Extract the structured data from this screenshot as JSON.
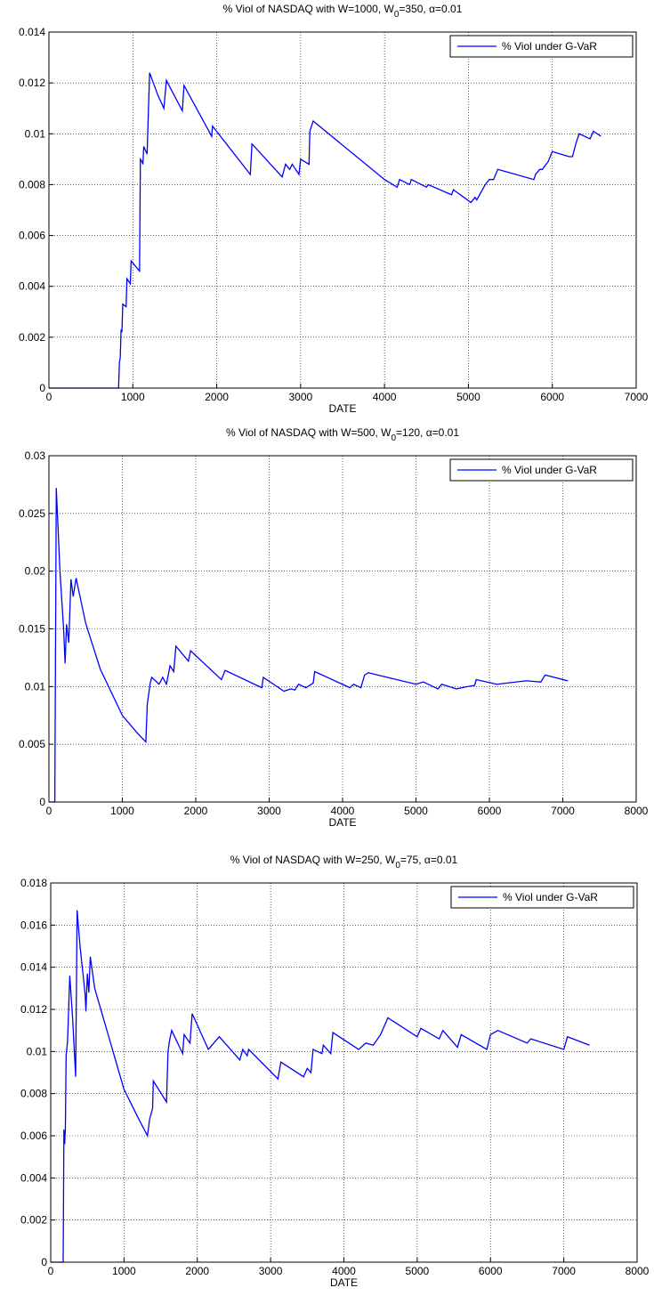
{
  "chart_data": [
    {
      "type": "line",
      "title": [
        "% Viol of NASDAQ  with W=1000, W",
        "0",
        "=350, α=0.01"
      ],
      "x_label": "DATE",
      "x": [
        0,
        830,
        840,
        850,
        860,
        870,
        880,
        920,
        930,
        970,
        980,
        1080,
        1090,
        1110,
        1120,
        1130,
        1170,
        1200,
        1300,
        1370,
        1400,
        1590,
        1610,
        1940,
        1950,
        2400,
        2420,
        2780,
        2820,
        2870,
        2900,
        2980,
        3000,
        3100,
        3110,
        3150,
        4000,
        4150,
        4180,
        4300,
        4320,
        4500,
        4520,
        4800,
        4820,
        5030,
        5080,
        5100,
        5150,
        5200,
        5250,
        5300,
        5350,
        5780,
        5800,
        5850,
        5880,
        5950,
        6000,
        6200,
        6240,
        6280,
        6320,
        6450,
        6490,
        6580
      ],
      "series": [
        {
          "name": "% Viol under G-VaR",
          "color": "#0000ff",
          "values": [
            0,
            0,
            0.001,
            0.0012,
            0.0023,
            0.0022,
            0.0033,
            0.0032,
            0.0043,
            0.0041,
            0.005,
            0.0046,
            0.009,
            0.0089,
            0.0088,
            0.0095,
            0.0092,
            0.0124,
            0.0115,
            0.011,
            0.0121,
            0.0109,
            0.0119,
            0.0099,
            0.0103,
            0.0084,
            0.0096,
            0.0083,
            0.0088,
            0.0086,
            0.0088,
            0.0084,
            0.009,
            0.0088,
            0.0101,
            0.0105,
            0.0082,
            0.0079,
            0.0082,
            0.008,
            0.0082,
            0.0079,
            0.008,
            0.0076,
            0.0078,
            0.0073,
            0.0075,
            0.0074,
            0.0077,
            0.008,
            0.0082,
            0.0082,
            0.0086,
            0.0082,
            0.0084,
            0.0086,
            0.0086,
            0.0089,
            0.0093,
            0.0091,
            0.0091,
            0.0096,
            0.01,
            0.0098,
            0.0101,
            0.0099
          ]
        }
      ],
      "xlim": [
        0,
        7000
      ],
      "xticks": [
        0,
        1000,
        2000,
        3000,
        4000,
        5000,
        6000,
        7000
      ],
      "ylim": [
        0,
        0.014
      ],
      "yticks": [
        0,
        0.002,
        0.004,
        0.006,
        0.008,
        0.01,
        0.012,
        0.014
      ],
      "grid": true,
      "legend": "upper right"
    },
    {
      "type": "line",
      "title": [
        "% Viol of NASDAQ  with W=500, W",
        "0",
        "=120, α=0.01"
      ],
      "x_label": "DATE",
      "x": [
        0,
        80,
        100,
        150,
        200,
        220,
        240,
        270,
        300,
        330,
        370,
        500,
        700,
        1000,
        1200,
        1320,
        1340,
        1380,
        1400,
        1500,
        1550,
        1600,
        1650,
        1700,
        1730,
        1900,
        1930,
        2350,
        2400,
        2900,
        2920,
        3200,
        3300,
        3350,
        3400,
        3500,
        3600,
        3620,
        4100,
        4150,
        4250,
        4300,
        4350,
        5000,
        5100,
        5300,
        5350,
        5550,
        5700,
        5800,
        5820,
        6100,
        6500,
        6700,
        6760,
        7070
      ],
      "series": [
        {
          "name": "% Viol under G-VaR",
          "color": "#0000ff",
          "values": [
            0,
            0,
            0.0272,
            0.02,
            0.015,
            0.012,
            0.0154,
            0.0138,
            0.0193,
            0.0178,
            0.0194,
            0.0155,
            0.0115,
            0.0075,
            0.006,
            0.0052,
            0.0085,
            0.0103,
            0.0108,
            0.0102,
            0.0108,
            0.0102,
            0.0118,
            0.0113,
            0.0135,
            0.0122,
            0.0131,
            0.0106,
            0.0114,
            0.0099,
            0.0108,
            0.0096,
            0.0098,
            0.0097,
            0.0102,
            0.0099,
            0.0103,
            0.0113,
            0.0099,
            0.0102,
            0.0099,
            0.011,
            0.0112,
            0.0102,
            0.0104,
            0.0098,
            0.0102,
            0.0098,
            0.01,
            0.0101,
            0.0106,
            0.0102,
            0.0105,
            0.0104,
            0.011,
            0.0105
          ]
        }
      ],
      "xlim": [
        0,
        8000
      ],
      "xticks": [
        0,
        1000,
        2000,
        3000,
        4000,
        5000,
        6000,
        7000,
        8000
      ],
      "ylim": [
        0,
        0.03
      ],
      "yticks": [
        0,
        0.005,
        0.01,
        0.015,
        0.02,
        0.025,
        0.03
      ],
      "grid": true,
      "legend": "upper right"
    },
    {
      "type": "line",
      "title": [
        "% Viol of NASDAQ  with W=250, W",
        "0",
        "=75, α=0.01"
      ],
      "x_label": "DATE",
      "x": [
        0,
        170,
        180,
        190,
        200,
        210,
        230,
        260,
        300,
        340,
        360,
        400,
        470,
        480,
        500,
        520,
        540,
        600,
        800,
        1000,
        1200,
        1320,
        1350,
        1390,
        1400,
        1580,
        1600,
        1620,
        1650,
        1800,
        1820,
        1900,
        1930,
        2150,
        2300,
        2580,
        2620,
        2680,
        2700,
        3100,
        3140,
        3450,
        3500,
        3550,
        3580,
        3700,
        3720,
        3820,
        3850,
        4200,
        4300,
        4400,
        4500,
        4600,
        5000,
        5050,
        5300,
        5350,
        5550,
        5600,
        5950,
        6000,
        6100,
        6500,
        6550,
        7000,
        7050,
        7350
      ],
      "series": [
        {
          "name": "% Viol under G-VaR",
          "color": "#0000ff",
          "values": [
            0,
            0,
            0.0063,
            0.0056,
            0.0063,
            0.0098,
            0.0105,
            0.0136,
            0.0115,
            0.0088,
            0.0167,
            0.015,
            0.0127,
            0.0119,
            0.0137,
            0.0128,
            0.0145,
            0.013,
            0.0106,
            0.0082,
            0.0068,
            0.006,
            0.0068,
            0.0073,
            0.0086,
            0.0076,
            0.01,
            0.0105,
            0.011,
            0.0099,
            0.0108,
            0.0104,
            0.0118,
            0.0101,
            0.0107,
            0.0096,
            0.0101,
            0.0098,
            0.0101,
            0.0087,
            0.0095,
            0.0088,
            0.0092,
            0.009,
            0.0101,
            0.0099,
            0.0103,
            0.0099,
            0.0109,
            0.0101,
            0.0104,
            0.0103,
            0.0108,
            0.0116,
            0.0107,
            0.0111,
            0.0106,
            0.011,
            0.0102,
            0.0108,
            0.0101,
            0.0108,
            0.011,
            0.0104,
            0.0106,
            0.0101,
            0.0107,
            0.0103
          ]
        }
      ],
      "xlim": [
        0,
        8000
      ],
      "xticks": [
        0,
        1000,
        2000,
        3000,
        4000,
        5000,
        6000,
        7000,
        8000
      ],
      "ylim": [
        0,
        0.018
      ],
      "yticks": [
        0,
        0.002,
        0.004,
        0.006,
        0.008,
        0.01,
        0.012,
        0.014,
        0.016,
        0.018
      ],
      "grid": true,
      "legend": "upper right"
    }
  ]
}
